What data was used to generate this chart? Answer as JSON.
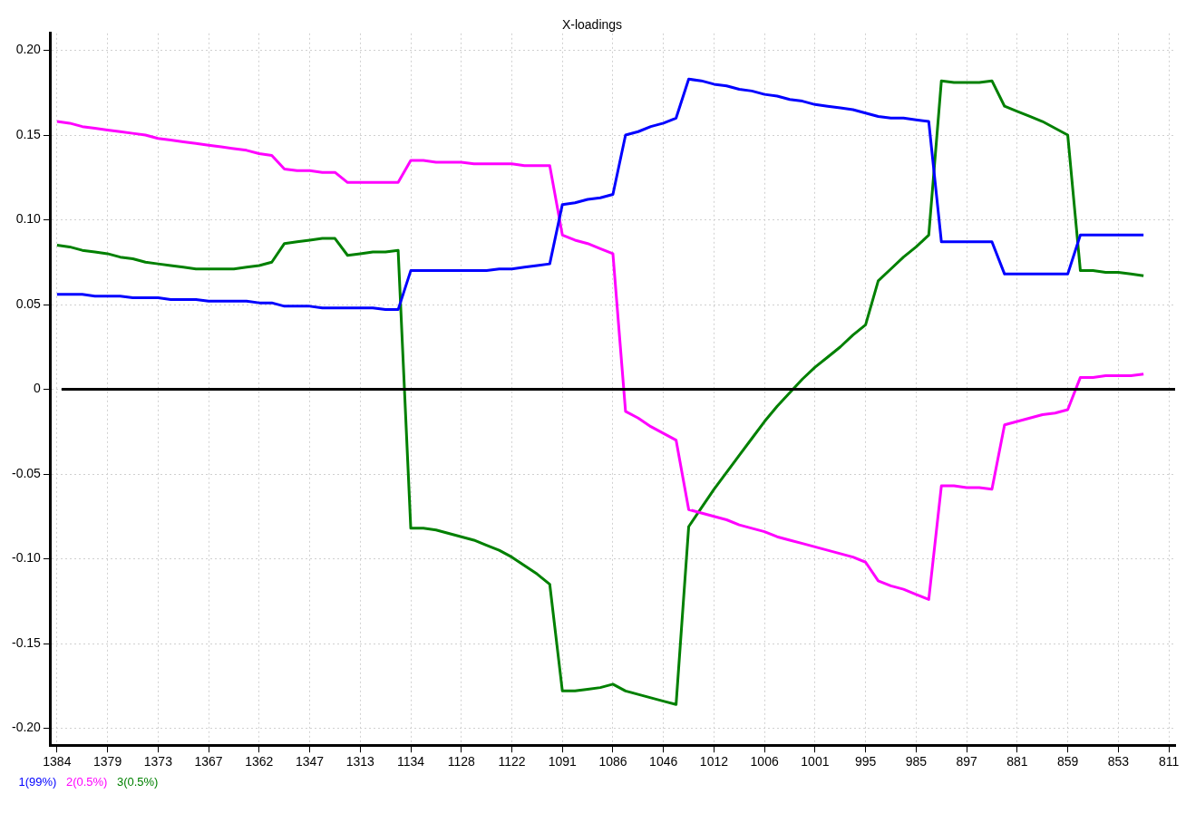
{
  "chart_data": {
    "type": "line",
    "title": "X-loadings",
    "categories": [
      "1384",
      null,
      null,
      null,
      "1379",
      null,
      null,
      null,
      "1373",
      null,
      null,
      null,
      "1367",
      null,
      null,
      null,
      "1362",
      null,
      null,
      null,
      "1347",
      null,
      null,
      null,
      "1313",
      null,
      null,
      null,
      "1134",
      null,
      null,
      null,
      "1128",
      null,
      null,
      null,
      "1122",
      null,
      null,
      null,
      "1091",
      null,
      null,
      null,
      "1086",
      null,
      null,
      null,
      "1046",
      null,
      null,
      null,
      "1012",
      null,
      null,
      null,
      "1006",
      null,
      null,
      null,
      "1001",
      null,
      null,
      null,
      "995",
      null,
      null,
      null,
      "985",
      null,
      null,
      null,
      "897",
      null,
      null,
      null,
      "881",
      null,
      null,
      null,
      "859",
      null,
      null,
      null,
      "853",
      null,
      null,
      null,
      "811"
    ],
    "ylim": [
      -0.21,
      0.21
    ],
    "yticks": [
      {
        "value": 0.2,
        "label": "0.20"
      },
      0.15,
      {
        "value": 0.1,
        "label": "0.10"
      },
      0.05,
      0,
      -0.05,
      {
        "value": -0.1,
        "label": "-0.10"
      },
      -0.15,
      {
        "value": -0.2,
        "label": "-0.20"
      }
    ],
    "grid": true,
    "legend": "bottom left",
    "line_style": "solid",
    "ref_lines": [
      {
        "axis": "y",
        "value": 0,
        "color": "#000000"
      }
    ],
    "series": [
      {
        "name": "1(99%)",
        "color": "#0000ff",
        "values": [
          0.056,
          0.056,
          0.056,
          0.055,
          0.055,
          0.055,
          0.054,
          0.054,
          0.054,
          0.053,
          0.053,
          0.053,
          0.052,
          0.052,
          0.052,
          0.052,
          0.051,
          0.051,
          0.049,
          0.049,
          0.049,
          0.048,
          0.048,
          0.048,
          0.048,
          0.048,
          0.047,
          0.047,
          0.07,
          0.07,
          0.07,
          0.07,
          0.07,
          0.07,
          0.07,
          0.071,
          0.071,
          0.072,
          0.073,
          0.074,
          0.109,
          0.11,
          0.112,
          0.113,
          0.115,
          0.15,
          0.152,
          0.155,
          0.157,
          0.16,
          0.183,
          0.182,
          0.18,
          0.179,
          0.177,
          0.176,
          0.174,
          0.173,
          0.171,
          0.17,
          0.168,
          0.167,
          0.166,
          0.165,
          0.163,
          0.161,
          0.16,
          0.16,
          0.159,
          0.158,
          0.087,
          0.087,
          0.087,
          0.087,
          0.087,
          0.068,
          0.068,
          0.068,
          0.068,
          0.068,
          0.068,
          0.091,
          0.091,
          0.091,
          0.091,
          0.091,
          0.091,
          null,
          null
        ]
      },
      {
        "name": "2(0.5%)",
        "color": "#ff00ff",
        "values": [
          0.158,
          0.157,
          0.155,
          0.154,
          0.153,
          0.152,
          0.151,
          0.15,
          0.148,
          0.147,
          0.146,
          0.145,
          0.144,
          0.143,
          0.142,
          0.141,
          0.139,
          0.138,
          0.13,
          0.129,
          0.129,
          0.128,
          0.128,
          0.122,
          0.122,
          0.122,
          0.122,
          0.122,
          0.135,
          0.135,
          0.134,
          0.134,
          0.134,
          0.133,
          0.133,
          0.133,
          0.133,
          0.132,
          0.132,
          0.132,
          0.091,
          0.088,
          0.086,
          0.083,
          0.08,
          -0.013,
          -0.017,
          -0.022,
          -0.026,
          -0.03,
          -0.071,
          -0.073,
          -0.075,
          -0.077,
          -0.08,
          -0.082,
          -0.084,
          -0.087,
          -0.089,
          -0.091,
          -0.093,
          -0.095,
          -0.097,
          -0.099,
          -0.102,
          -0.113,
          -0.116,
          -0.118,
          -0.121,
          -0.124,
          -0.057,
          -0.057,
          -0.058,
          -0.058,
          -0.059,
          -0.021,
          -0.019,
          -0.017,
          -0.015,
          -0.014,
          -0.012,
          0.007,
          0.007,
          0.008,
          0.008,
          0.008,
          0.009,
          null,
          null
        ]
      },
      {
        "name": "3(0.5%)",
        "color": "#008000",
        "values": [
          0.085,
          0.084,
          0.082,
          0.081,
          0.08,
          0.078,
          0.077,
          0.075,
          0.074,
          0.073,
          0.072,
          0.071,
          0.071,
          0.071,
          0.071,
          0.072,
          0.073,
          0.075,
          0.086,
          0.087,
          0.088,
          0.089,
          0.089,
          0.079,
          0.08,
          0.081,
          0.081,
          0.082,
          -0.082,
          -0.082,
          -0.083,
          -0.085,
          -0.087,
          -0.089,
          -0.092,
          -0.095,
          -0.099,
          -0.104,
          -0.109,
          -0.115,
          -0.178,
          -0.178,
          -0.177,
          -0.176,
          -0.174,
          -0.178,
          -0.18,
          -0.182,
          -0.184,
          -0.186,
          -0.081,
          -0.07,
          -0.059,
          -0.049,
          -0.039,
          -0.029,
          -0.019,
          -0.01,
          -0.002,
          0.006,
          0.013,
          0.019,
          0.025,
          0.032,
          0.038,
          0.064,
          0.071,
          0.078,
          0.084,
          0.091,
          0.182,
          0.181,
          0.181,
          0.181,
          0.182,
          0.167,
          0.164,
          0.161,
          0.158,
          0.154,
          0.15,
          0.07,
          0.07,
          0.069,
          0.069,
          0.068,
          0.067,
          null,
          null
        ]
      }
    ]
  }
}
